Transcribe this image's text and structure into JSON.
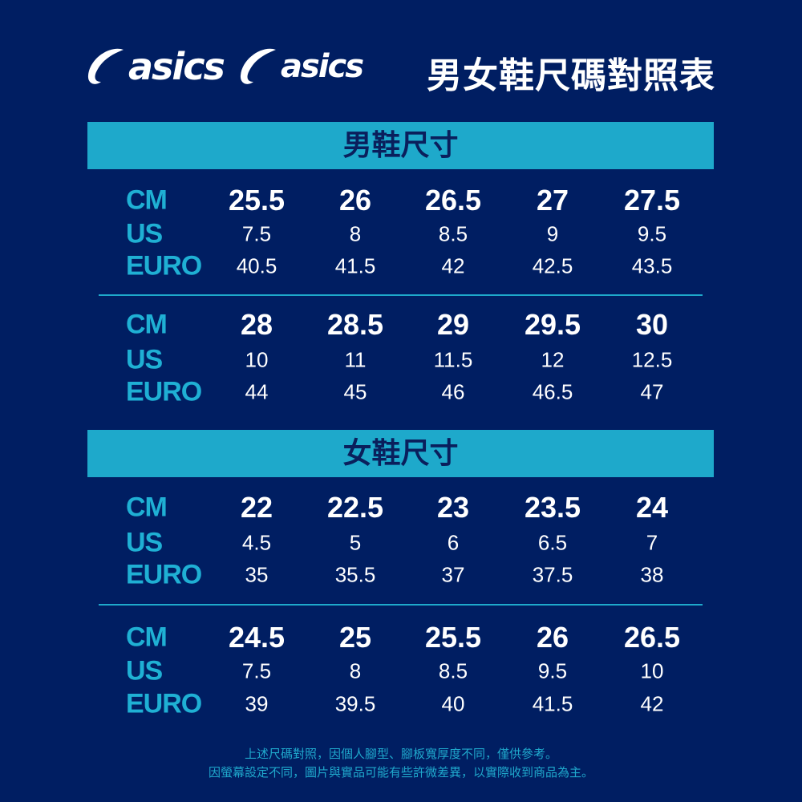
{
  "logos": [
    "asics",
    "asics"
  ],
  "title": "男女鞋尺碼對照表",
  "colors": {
    "background": "#001e62",
    "accent": "#1ea9cb"
  },
  "row_labels": [
    "CM",
    "US",
    "EURO"
  ],
  "sections": [
    {
      "heading": "男鞋尺寸",
      "blocks": [
        {
          "cm": [
            "25.5",
            "26",
            "26.5",
            "27",
            "27.5"
          ],
          "us": [
            "7.5",
            "8",
            "8.5",
            "9",
            "9.5"
          ],
          "euro": [
            "40.5",
            "41.5",
            "42",
            "42.5",
            "43.5"
          ]
        },
        {
          "cm": [
            "28",
            "28.5",
            "29",
            "29.5",
            "30"
          ],
          "us": [
            "10",
            "11",
            "11.5",
            "12",
            "12.5"
          ],
          "euro": [
            "44",
            "45",
            "46",
            "46.5",
            "47"
          ]
        }
      ]
    },
    {
      "heading": "女鞋尺寸",
      "blocks": [
        {
          "cm": [
            "22",
            "22.5",
            "23",
            "23.5",
            "24"
          ],
          "us": [
            "4.5",
            "5",
            "6",
            "6.5",
            "7"
          ],
          "euro": [
            "35",
            "35.5",
            "37",
            "37.5",
            "38"
          ]
        },
        {
          "cm": [
            "24.5",
            "25",
            "25.5",
            "26",
            "26.5"
          ],
          "us": [
            "7.5",
            "8",
            "8.5",
            "9.5",
            "10"
          ],
          "euro": [
            "39",
            "39.5",
            "40",
            "41.5",
            "42"
          ]
        }
      ]
    }
  ],
  "footer": [
    "上述尺碼對照，因個人腳型、腳板寬厚度不同，僅供參考。",
    "因螢幕設定不同，圖片與實品可能有些許微差異，以實際收到商品為主。"
  ]
}
